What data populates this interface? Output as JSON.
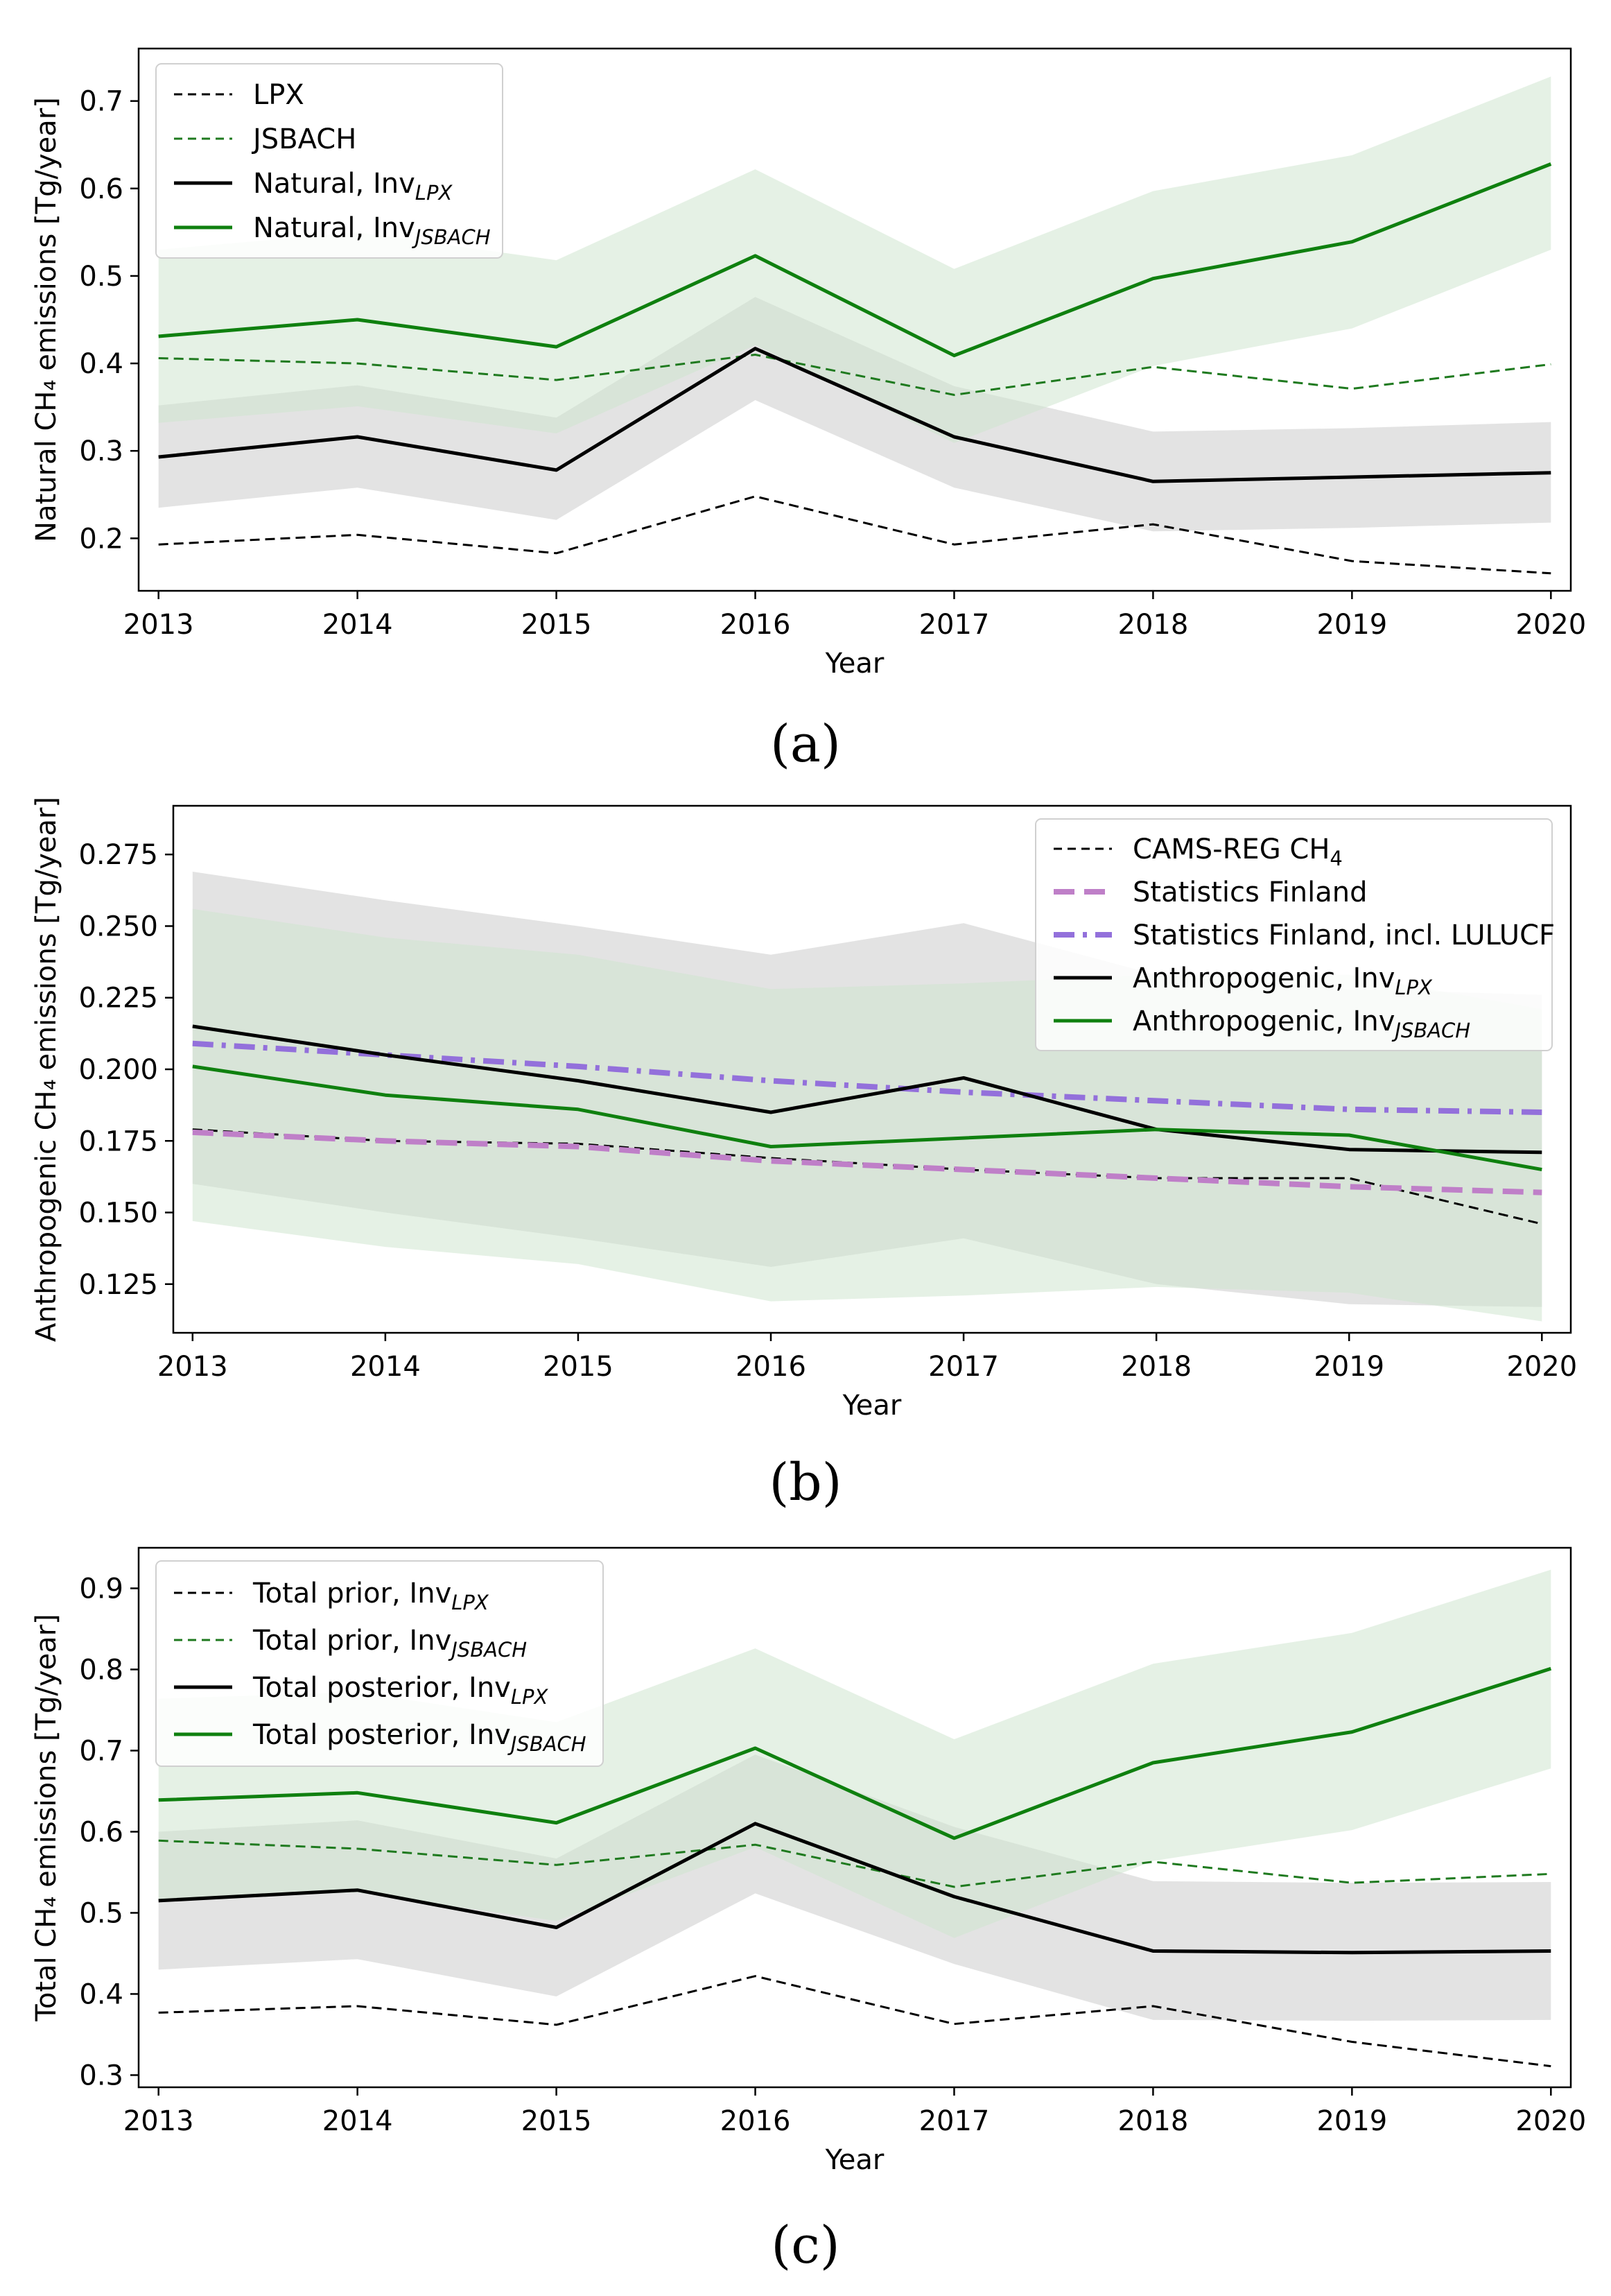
{
  "chart_data": [
    {
      "type": "line",
      "panel": "a",
      "caption": "(a)",
      "xlabel": "Year",
      "ylabel": "Natural CH₄ emissions [Tg/year]",
      "x": [
        2013,
        2014,
        2015,
        2016,
        2017,
        2018,
        2019,
        2020
      ],
      "xlim": [
        2012.9,
        2020.1
      ],
      "ylim": [
        0.14,
        0.76
      ],
      "yticks": [
        0.2,
        0.3,
        0.4,
        0.5,
        0.6,
        0.7
      ],
      "ytick_labels": [
        "0.2",
        "0.3",
        "0.4",
        "0.5",
        "0.6",
        "0.7"
      ],
      "legend_position": "top-left",
      "bands": [
        {
          "name": "Natural, Inv_LPX uncertainty",
          "color": "#cccccc",
          "opacity": 0.55,
          "lower": [
            0.235,
            0.258,
            0.221,
            0.358,
            0.258,
            0.208,
            0.212,
            0.218
          ],
          "upper": [
            0.352,
            0.375,
            0.338,
            0.476,
            0.374,
            0.322,
            0.326,
            0.333
          ]
        },
        {
          "name": "Natural, Inv_JSBACH uncertainty",
          "color": "#cfe6cf",
          "opacity": 0.55,
          "lower": [
            0.332,
            0.351,
            0.32,
            0.421,
            0.309,
            0.397,
            0.44,
            0.53
          ],
          "upper": [
            0.53,
            0.55,
            0.518,
            0.622,
            0.508,
            0.597,
            0.638,
            0.728
          ]
        }
      ],
      "series": [
        {
          "name": "LPX",
          "main": "LPX",
          "sub": "",
          "color": "#000000",
          "dash": "dashed",
          "width": 3,
          "values": [
            0.193,
            0.204,
            0.183,
            0.248,
            0.193,
            0.216,
            0.174,
            0.16
          ]
        },
        {
          "name": "JSBACH",
          "main": "JSBACH",
          "sub": "",
          "color": "#1f7a1f",
          "dash": "dashed",
          "width": 3,
          "values": [
            0.406,
            0.4,
            0.381,
            0.41,
            0.364,
            0.396,
            0.371,
            0.399
          ]
        },
        {
          "name": "Natural, Inv_LPX",
          "main": "Natural, Inv",
          "sub": "LPX",
          "color": "#000000",
          "dash": "solid",
          "width": 5,
          "values": [
            0.293,
            0.316,
            0.278,
            0.417,
            0.316,
            0.265,
            0.27,
            0.275
          ]
        },
        {
          "name": "Natural, Inv_JSBACH",
          "main": "Natural, Inv",
          "sub": "JSBACH",
          "color": "#0f800f",
          "dash": "solid",
          "width": 5,
          "values": [
            0.431,
            0.45,
            0.419,
            0.523,
            0.409,
            0.497,
            0.539,
            0.628
          ]
        }
      ]
    },
    {
      "type": "line",
      "panel": "b",
      "caption": "(b)",
      "xlabel": "Year",
      "ylabel": "Anthropogenic CH₄ emissions [Tg/year]",
      "x": [
        2013,
        2014,
        2015,
        2016,
        2017,
        2018,
        2019,
        2020
      ],
      "xlim": [
        2012.9,
        2020.15
      ],
      "ylim": [
        0.108,
        0.292
      ],
      "yticks": [
        0.125,
        0.15,
        0.175,
        0.2,
        0.225,
        0.25,
        0.275
      ],
      "ytick_labels": [
        "0.125",
        "0.150",
        "0.175",
        "0.200",
        "0.225",
        "0.250",
        "0.275"
      ],
      "legend_position": "top-right",
      "bands": [
        {
          "name": "Anthropogenic, Inv_LPX uncertainty",
          "color": "#cccccc",
          "opacity": 0.55,
          "lower": [
            0.16,
            0.15,
            0.141,
            0.131,
            0.141,
            0.125,
            0.118,
            0.117
          ],
          "upper": [
            0.269,
            0.259,
            0.25,
            0.24,
            0.251,
            0.233,
            0.228,
            0.226
          ]
        },
        {
          "name": "Anthropogenic, Inv_JSBACH uncertainty",
          "color": "#cfe6cf",
          "opacity": 0.55,
          "lower": [
            0.147,
            0.138,
            0.132,
            0.119,
            0.121,
            0.124,
            0.122,
            0.112
          ],
          "upper": [
            0.256,
            0.246,
            0.24,
            0.228,
            0.23,
            0.233,
            0.233,
            0.221
          ]
        }
      ],
      "series": [
        {
          "name": "CAMS-REG CH4",
          "main": "CAMS-REG CH",
          "sub": "4",
          "sub_style": "normal",
          "color": "#000000",
          "dash": "dashed",
          "width": 3,
          "values": [
            0.179,
            0.175,
            0.174,
            0.169,
            0.165,
            0.162,
            0.162,
            0.146
          ]
        },
        {
          "name": "Statistics Finland",
          "main": "Statistics Finland",
          "sub": "",
          "color": "#bf7fc8",
          "dash": "longdash",
          "width": 8,
          "values": [
            0.178,
            0.175,
            0.173,
            0.168,
            0.165,
            0.162,
            0.159,
            0.157
          ]
        },
        {
          "name": "Statistics Finland, incl. LULUCF",
          "main": "Statistics Finland, incl. LULUCF",
          "sub": "",
          "color": "#9370db",
          "dash": "dashdot",
          "width": 8,
          "values": [
            0.209,
            0.205,
            0.201,
            0.196,
            0.192,
            0.189,
            0.186,
            0.185
          ]
        },
        {
          "name": "Anthropogenic, Inv_LPX",
          "main": "Anthropogenic, Inv",
          "sub": "LPX",
          "color": "#000000",
          "dash": "solid",
          "width": 5,
          "values": [
            0.215,
            0.205,
            0.196,
            0.185,
            0.197,
            0.179,
            0.172,
            0.171
          ]
        },
        {
          "name": "Anthropogenic, Inv_JSBACH",
          "main": "Anthropogenic, Inv",
          "sub": "JSBACH",
          "color": "#0f800f",
          "dash": "solid",
          "width": 5,
          "values": [
            0.201,
            0.191,
            0.186,
            0.173,
            0.176,
            0.179,
            0.177,
            0.165
          ]
        }
      ]
    },
    {
      "type": "line",
      "panel": "c",
      "caption": "(c)",
      "xlabel": "Year",
      "ylabel": "Total CH₄ emissions [Tg/year]",
      "x": [
        2013,
        2014,
        2015,
        2016,
        2017,
        2018,
        2019,
        2020
      ],
      "xlim": [
        2012.9,
        2020.1
      ],
      "ylim": [
        0.285,
        0.95
      ],
      "yticks": [
        0.3,
        0.4,
        0.5,
        0.6,
        0.7,
        0.8,
        0.9
      ],
      "ytick_labels": [
        "0.3",
        "0.4",
        "0.5",
        "0.6",
        "0.7",
        "0.8",
        "0.9"
      ],
      "legend_position": "top-left",
      "bands": [
        {
          "name": "Total posterior, Inv_LPX uncertainty",
          "color": "#cccccc",
          "opacity": 0.55,
          "lower": [
            0.43,
            0.443,
            0.397,
            0.524,
            0.437,
            0.368,
            0.367,
            0.368
          ],
          "upper": [
            0.6,
            0.614,
            0.567,
            0.695,
            0.606,
            0.539,
            0.537,
            0.538
          ]
        },
        {
          "name": "Total posterior, Inv_JSBACH uncertainty",
          "color": "#cfe6cf",
          "opacity": 0.55,
          "lower": [
            0.517,
            0.525,
            0.49,
            0.581,
            0.469,
            0.564,
            0.602,
            0.678
          ],
          "upper": [
            0.764,
            0.772,
            0.735,
            0.826,
            0.714,
            0.807,
            0.845,
            0.923
          ]
        }
      ],
      "series": [
        {
          "name": "Total prior, Inv_LPX",
          "main": "Total prior, Inv",
          "sub": "LPX",
          "color": "#000000",
          "dash": "dashed",
          "width": 3,
          "values": [
            0.377,
            0.385,
            0.362,
            0.422,
            0.363,
            0.385,
            0.341,
            0.311
          ]
        },
        {
          "name": "Total prior, Inv_JSBACH",
          "main": "Total prior, Inv",
          "sub": "JSBACH",
          "color": "#1f7a1f",
          "dash": "dashed",
          "width": 3,
          "values": [
            0.589,
            0.579,
            0.559,
            0.584,
            0.532,
            0.563,
            0.537,
            0.548
          ]
        },
        {
          "name": "Total posterior, Inv_LPX",
          "main": "Total posterior, Inv",
          "sub": "LPX",
          "color": "#000000",
          "dash": "solid",
          "width": 5,
          "values": [
            0.515,
            0.528,
            0.482,
            0.61,
            0.52,
            0.453,
            0.451,
            0.453
          ]
        },
        {
          "name": "Total posterior, Inv_JSBACH",
          "main": "Total posterior, Inv",
          "sub": "JSBACH",
          "color": "#0f800f",
          "dash": "solid",
          "width": 5,
          "values": [
            0.639,
            0.648,
            0.611,
            0.703,
            0.592,
            0.685,
            0.723,
            0.801
          ]
        }
      ]
    }
  ]
}
